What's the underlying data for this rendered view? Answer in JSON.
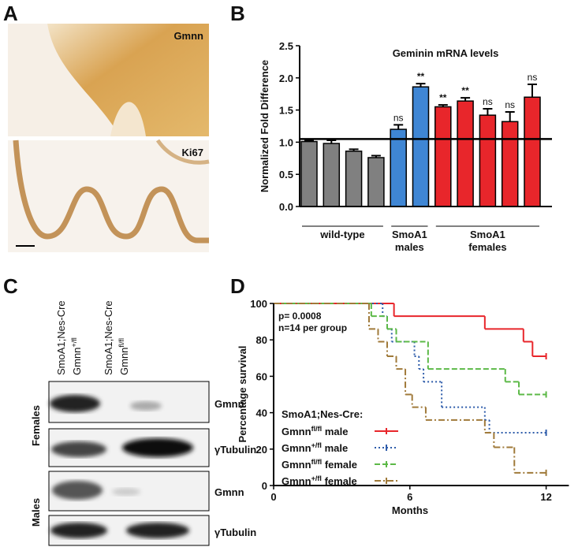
{
  "panels": [
    "A",
    "B",
    "C",
    "D"
  ],
  "histology": {
    "top_label": "Gmnn",
    "bottom_label": "Ki67"
  },
  "blot": {
    "lanes": [
      {
        "line": "SmoA1;Nes-Cre",
        "gene": "Gmnn",
        "genotype": "+/fl"
      },
      {
        "line": "SmoA1;Nes-Cre",
        "gene": "Gmnn",
        "genotype": "fl/fl"
      }
    ],
    "groups": [
      "Females",
      "Males"
    ],
    "bands": [
      "Gmnn",
      "γTubulin",
      "Gmnn",
      "γTubulin"
    ]
  },
  "chart_data": [
    {
      "type": "bar",
      "title": "Geminin mRNA levels",
      "y_label": "Normalized Fold Difference",
      "values": [
        1.01,
        0.98,
        0.86,
        0.76,
        1.2,
        1.86,
        1.55,
        1.64,
        1.42,
        1.32,
        1.7
      ],
      "errors": [
        0.02,
        0.05,
        0.03,
        0.03,
        0.07,
        0.05,
        0.03,
        0.05,
        0.1,
        0.15,
        0.2
      ],
      "colors": [
        "#808080",
        "#808080",
        "#808080",
        "#808080",
        "#3f86d4",
        "#3f86d4",
        "#e8262b",
        "#e8262b",
        "#e8262b",
        "#e8262b",
        "#e8262b"
      ],
      "significance": [
        null,
        null,
        null,
        null,
        "ns",
        "**",
        "**",
        "**",
        "ns",
        "ns",
        "ns"
      ],
      "reference_line": 1.05,
      "groups": [
        {
          "label": [
            "wild-type"
          ],
          "size": 4
        },
        {
          "label": [
            "SmoA1",
            "males"
          ],
          "size": 2
        },
        {
          "label": [
            "SmoA1",
            "females"
          ],
          "size": 5
        }
      ],
      "ylim": [
        0,
        2.5
      ],
      "yticks": [
        {
          "value": 0,
          "label": "0.0"
        },
        {
          "value": 0.5,
          "label": "0.5"
        },
        {
          "value": 1,
          "label": "1.0"
        },
        {
          "value": 1.5,
          "label": "1.5"
        },
        {
          "value": 2,
          "label": "2.0"
        },
        {
          "value": 2.5,
          "label": "2.5"
        }
      ]
    },
    {
      "type": "survival",
      "x_label": "Months",
      "y_label": "Percentage survival",
      "annotations": [
        "p= 0.0008",
        "n=14 per group"
      ],
      "legend_title": "SmoA1;Nes-Cre:",
      "series": [
        {
          "gene": "Gmnn",
          "genotype": "fl/fl",
          "sex": " male",
          "color": "#e8262b",
          "dash": "none",
          "x": [
            0,
            5.3,
            9.3,
            11.0,
            11.4,
            12
          ],
          "values": [
            100,
            93,
            86,
            79,
            71,
            71
          ]
        },
        {
          "gene": "Gmnn",
          "genotype": "+/fl",
          "sex": " male",
          "color": "#2e5caa",
          "dash": "2,3",
          "x": [
            0,
            4.8,
            5.0,
            5.2,
            6.2,
            6.4,
            6.6,
            7.4,
            9.3,
            9.5,
            12
          ],
          "values": [
            100,
            93,
            86,
            79,
            71,
            64,
            57,
            43,
            36,
            29,
            29
          ]
        },
        {
          "gene": "Gmnn",
          "genotype": "fl/fl",
          "sex": " female",
          "color": "#5cb947",
          "dash": "7,3",
          "x": [
            0,
            4.3,
            5.0,
            5.4,
            6.8,
            10.2,
            10.8,
            12
          ],
          "values": [
            100,
            93,
            86,
            79,
            64,
            57,
            50,
            50
          ]
        },
        {
          "gene": "Gmnn",
          "genotype": "+/fl",
          "sex": " female",
          "color": "#a07a3a",
          "dash": "8,3,2,3",
          "x": [
            0,
            4.2,
            4.6,
            5.0,
            5.4,
            5.8,
            6.1,
            6.7,
            9.3,
            9.7,
            10.6,
            12
          ],
          "values": [
            100,
            86,
            79,
            71,
            64,
            50,
            43,
            36,
            29,
            21,
            7,
            7
          ]
        }
      ],
      "xlim": [
        0,
        13
      ],
      "xticks": [
        0,
        6,
        12
      ],
      "ylim": [
        0,
        100
      ],
      "yticks": [
        0,
        20,
        40,
        60,
        80,
        100
      ]
    }
  ]
}
